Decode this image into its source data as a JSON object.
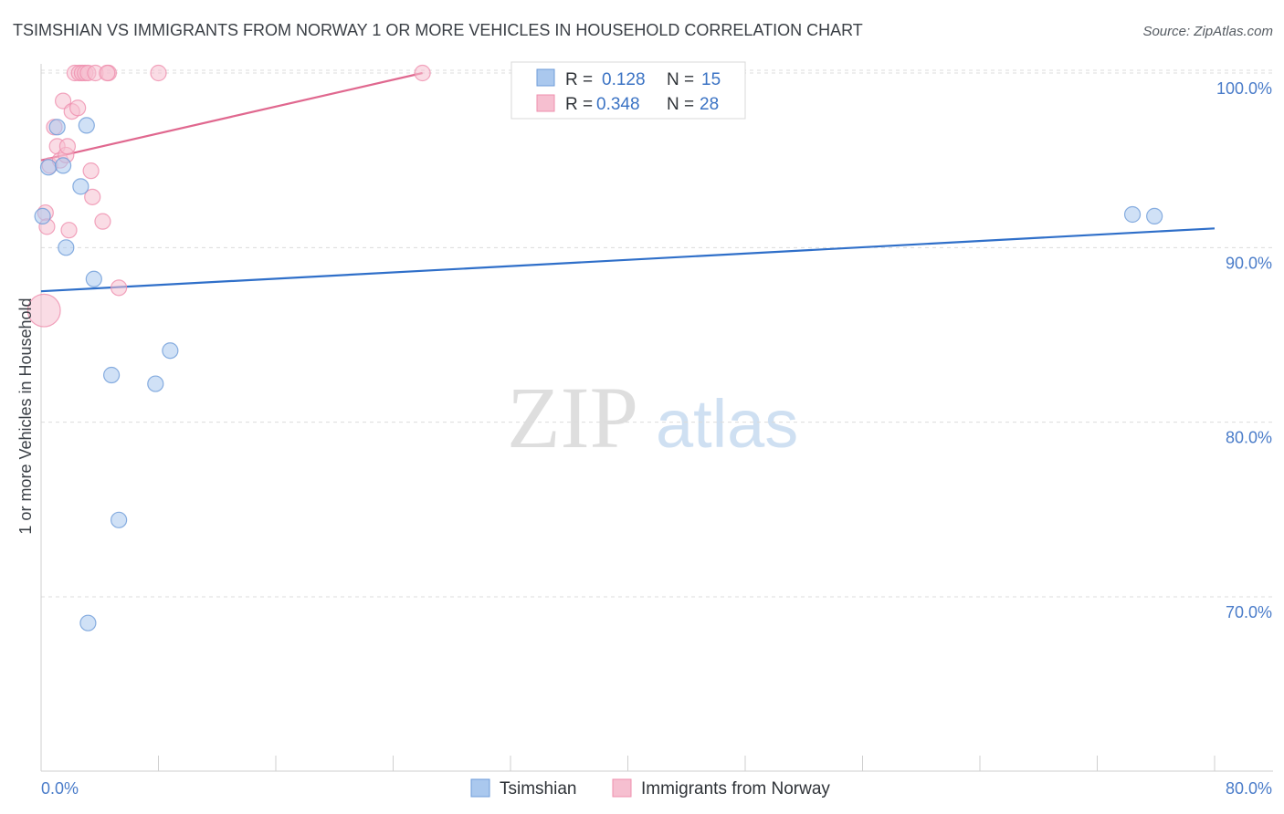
{
  "title": "TSIMSHIAN VS IMMIGRANTS FROM NORWAY 1 OR MORE VEHICLES IN HOUSEHOLD CORRELATION CHART",
  "source": "Source: ZipAtlas.com",
  "watermark": {
    "zip": "ZIP",
    "atlas": "atlas"
  },
  "colors": {
    "blue_fill": "#aac8ee",
    "blue_stroke": "#6d9bd8",
    "blue_line": "#2f6fc9",
    "pink_fill": "#f6bfd0",
    "pink_stroke": "#ef8fae",
    "pink_line": "#e0688f",
    "grid": "#dcdcdc",
    "axis_text": "#4a7cc9"
  },
  "stats_box": {
    "rows": [
      {
        "r_label": "R =",
        "r_value": "0.128",
        "n_label": "N =",
        "n_value": "15",
        "color": "#aac8ee"
      },
      {
        "r_label": "R =",
        "r_value": "0.348",
        "n_label": "N =",
        "n_value": "28",
        "color": "#f6bfd0"
      }
    ]
  },
  "chart_data": {
    "type": "scatter",
    "title": "TSIMSHIAN VS IMMIGRANTS FROM NORWAY 1 OR MORE VEHICLES IN HOUSEHOLD CORRELATION CHART",
    "xlabel": "",
    "ylabel": "1 or more Vehicles in Household",
    "xlim": [
      0,
      80
    ],
    "ylim": [
      60,
      101
    ],
    "x_tick_labels": [
      "0.0%",
      "80.0%"
    ],
    "y_ticks": [
      70,
      80,
      90,
      100
    ],
    "y_tick_labels": [
      "70.0%",
      "80.0%",
      "90.0%",
      "100.0%"
    ],
    "grid": true,
    "legend": {
      "position": "bottom"
    },
    "series": [
      {
        "name": "Tsimshian",
        "color": "#aac8ee",
        "points": [
          {
            "x": 0.1,
            "y": 91.8,
            "s": 1
          },
          {
            "x": 0.5,
            "y": 94.6,
            "s": 1
          },
          {
            "x": 1.1,
            "y": 96.9,
            "s": 1
          },
          {
            "x": 1.5,
            "y": 94.7,
            "s": 1
          },
          {
            "x": 1.7,
            "y": 90.0,
            "s": 1
          },
          {
            "x": 2.7,
            "y": 93.5,
            "s": 1
          },
          {
            "x": 3.1,
            "y": 97.0,
            "s": 1
          },
          {
            "x": 3.6,
            "y": 88.2,
            "s": 1
          },
          {
            "x": 4.8,
            "y": 82.7,
            "s": 1
          },
          {
            "x": 5.3,
            "y": 74.4,
            "s": 1
          },
          {
            "x": 7.8,
            "y": 82.2,
            "s": 1
          },
          {
            "x": 8.8,
            "y": 84.1,
            "s": 1
          },
          {
            "x": 3.2,
            "y": 68.5,
            "s": 1
          },
          {
            "x": 74.4,
            "y": 91.9,
            "s": 1
          },
          {
            "x": 75.9,
            "y": 91.8,
            "s": 1
          }
        ],
        "trend": {
          "x": [
            0,
            80
          ],
          "y": [
            87.5,
            91.1
          ]
        }
      },
      {
        "name": "Immigrants from Norway",
        "color": "#f6bfd0",
        "points": [
          {
            "x": 0.2,
            "y": 86.4,
            "s": 2.1
          },
          {
            "x": 0.3,
            "y": 92.0,
            "s": 1
          },
          {
            "x": 0.4,
            "y": 91.2,
            "s": 1
          },
          {
            "x": 0.6,
            "y": 94.7,
            "s": 1
          },
          {
            "x": 0.9,
            "y": 96.9,
            "s": 1
          },
          {
            "x": 1.1,
            "y": 95.8,
            "s": 1
          },
          {
            "x": 1.3,
            "y": 95.0,
            "s": 1
          },
          {
            "x": 1.5,
            "y": 98.4,
            "s": 1
          },
          {
            "x": 1.7,
            "y": 95.3,
            "s": 1
          },
          {
            "x": 1.8,
            "y": 95.8,
            "s": 1
          },
          {
            "x": 1.9,
            "y": 91.0,
            "s": 1
          },
          {
            "x": 2.1,
            "y": 97.8,
            "s": 1
          },
          {
            "x": 2.3,
            "y": 100.0,
            "s": 1
          },
          {
            "x": 2.5,
            "y": 98.0,
            "s": 1
          },
          {
            "x": 2.6,
            "y": 100.0,
            "s": 1
          },
          {
            "x": 2.8,
            "y": 100.0,
            "s": 1
          },
          {
            "x": 3.0,
            "y": 100.0,
            "s": 1
          },
          {
            "x": 3.2,
            "y": 100.0,
            "s": 1
          },
          {
            "x": 3.4,
            "y": 94.4,
            "s": 1
          },
          {
            "x": 3.5,
            "y": 92.9,
            "s": 1
          },
          {
            "x": 3.7,
            "y": 100.0,
            "s": 1
          },
          {
            "x": 4.2,
            "y": 91.5,
            "s": 1
          },
          {
            "x": 4.6,
            "y": 100.0,
            "s": 1
          },
          {
            "x": 5.3,
            "y": 87.7,
            "s": 1
          },
          {
            "x": 8.0,
            "y": 100.0,
            "s": 1
          },
          {
            "x": 26.0,
            "y": 100.0,
            "s": 1
          },
          {
            "x": 33.1,
            "y": 100.0,
            "s": 1
          },
          {
            "x": 4.5,
            "y": 100.0,
            "s": 1
          }
        ],
        "trend": {
          "x": [
            0,
            26
          ],
          "y": [
            95.0,
            100.0
          ]
        }
      }
    ]
  }
}
